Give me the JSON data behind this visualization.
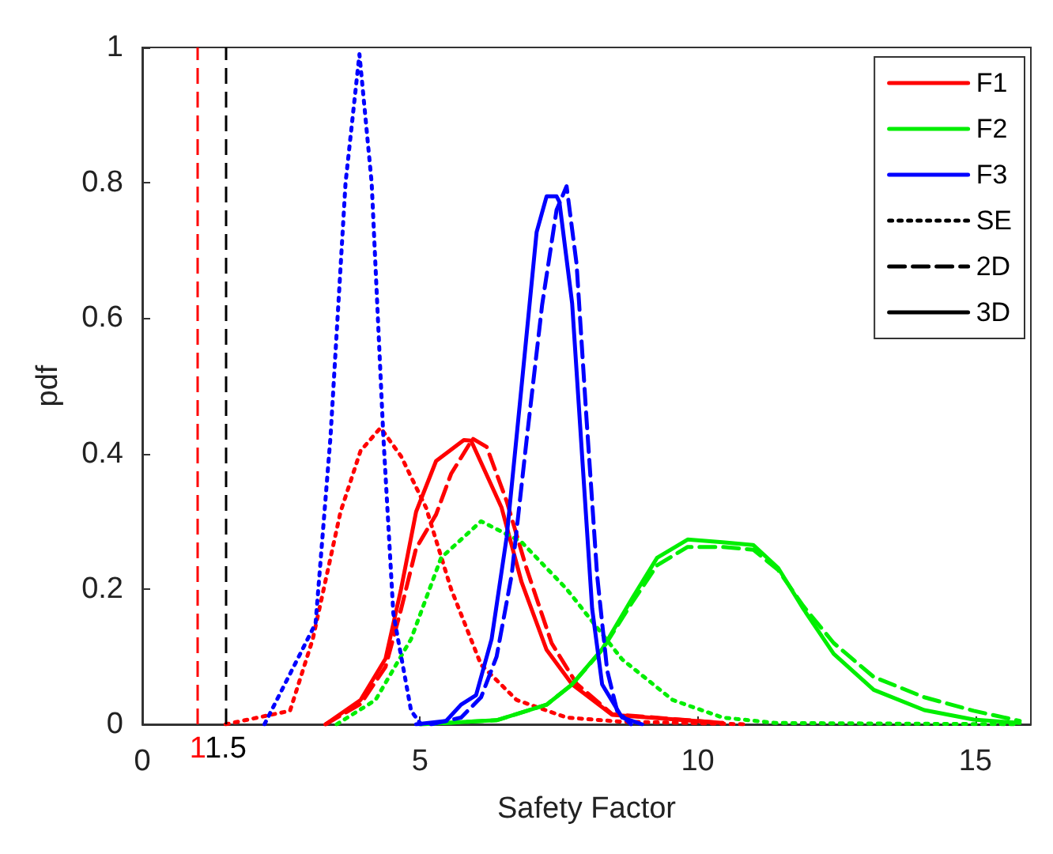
{
  "chart_data": {
    "type": "line",
    "xlabel": "Safety Factor",
    "ylabel": "pdf",
    "xlim": [
      0,
      16
    ],
    "xticks": [
      0,
      5,
      10,
      15
    ],
    "ylim": [
      0,
      1
    ],
    "yticks": [
      0,
      0.2,
      0.4,
      0.6,
      0.8,
      1
    ],
    "grid": false,
    "legend": "top right",
    "marker": "none",
    "series": [
      {
        "color": "#ff0000",
        "line_style": "dotted",
        "x": [
          1.5,
          2.66,
          3.07,
          3.57,
          3.93,
          4.29,
          4.66,
          5.11,
          5.56,
          6.1,
          6.74,
          7.64,
          8.6,
          10.9
        ],
        "values": [
          0,
          0.02,
          0.126,
          0.314,
          0.404,
          0.438,
          0.396,
          0.32,
          0.2,
          0.088,
          0.036,
          0.01,
          0.004,
          0
        ]
      },
      {
        "color": "#ff0000",
        "line_style": "dashed",
        "x": [
          3.3,
          3.93,
          4.38,
          4.66,
          4.93,
          5.29,
          5.56,
          5.95,
          6.2,
          6.56,
          6.92,
          7.37,
          7.82,
          8.46,
          10.45
        ],
        "values": [
          0,
          0.03,
          0.085,
          0.17,
          0.26,
          0.31,
          0.37,
          0.422,
          0.41,
          0.33,
          0.23,
          0.12,
          0.06,
          0.015,
          0.002
        ]
      },
      {
        "color": "#ff0000",
        "line_style": "solid",
        "x": [
          3.3,
          3.93,
          4.38,
          4.66,
          4.93,
          5.29,
          5.79,
          5.92,
          6.47,
          6.83,
          7.28,
          7.74,
          8.46,
          10.45
        ],
        "values": [
          0,
          0.036,
          0.097,
          0.2,
          0.314,
          0.389,
          0.42,
          0.419,
          0.32,
          0.21,
          0.11,
          0.059,
          0.014,
          0.002
        ]
      },
      {
        "color": "#00ee00",
        "line_style": "dotted",
        "x": [
          3.5,
          4.2,
          4.84,
          5.38,
          6.1,
          6.82,
          7.64,
          8.64,
          9.55,
          10.45,
          11.4,
          15.8
        ],
        "values": [
          0,
          0.036,
          0.126,
          0.246,
          0.3,
          0.27,
          0.2,
          0.096,
          0.036,
          0.01,
          0.002,
          0
        ]
      },
      {
        "color": "#00ee00",
        "line_style": "dashed",
        "x": [
          5,
          6.38,
          7.28,
          7.74,
          8.28,
          8.82,
          9.27,
          9.82,
          10.45,
          11.0,
          11.45,
          11.9,
          12.45,
          13.17,
          14.08,
          14.97,
          15.8
        ],
        "values": [
          0,
          0.006,
          0.029,
          0.059,
          0.11,
          0.18,
          0.235,
          0.262,
          0.262,
          0.258,
          0.228,
          0.175,
          0.12,
          0.07,
          0.04,
          0.02,
          0.005
        ]
      },
      {
        "color": "#00ee00",
        "line_style": "solid",
        "x": [
          5,
          6.38,
          7.28,
          7.74,
          8.28,
          8.82,
          9.27,
          9.82,
          10.45,
          11.0,
          11.45,
          11.9,
          12.45,
          13.17,
          14.08,
          14.97,
          15.8
        ],
        "values": [
          0,
          0.006,
          0.029,
          0.059,
          0.111,
          0.186,
          0.246,
          0.273,
          0.269,
          0.265,
          0.231,
          0.171,
          0.104,
          0.051,
          0.021,
          0.007,
          0.002
        ]
      },
      {
        "color": "#0000ff",
        "line_style": "dotted",
        "x": [
          2.2,
          3.12,
          3.39,
          3.66,
          3.91,
          4.13,
          4.34,
          4.52,
          4.84,
          5.02
        ],
        "values": [
          0,
          0.149,
          0.426,
          0.8,
          0.99,
          0.8,
          0.426,
          0.164,
          0.02,
          0
        ]
      },
      {
        "color": "#0000ff",
        "line_style": "dashed",
        "x": [
          5.2,
          5.74,
          6.1,
          6.38,
          6.65,
          6.92,
          7.2,
          7.46,
          7.64,
          7.82,
          8.0,
          8.19,
          8.37,
          8.55,
          8.8
        ],
        "values": [
          0,
          0.01,
          0.04,
          0.1,
          0.22,
          0.42,
          0.62,
          0.76,
          0.795,
          0.68,
          0.45,
          0.22,
          0.08,
          0.02,
          0
        ]
      },
      {
        "color": "#0000ff",
        "line_style": "solid",
        "x": [
          4.93,
          5.47,
          5.74,
          6.01,
          6.29,
          6.56,
          6.83,
          7.1,
          7.28,
          7.46,
          7.51,
          7.74,
          7.92,
          8.1,
          8.28,
          8.64,
          9.0
        ],
        "values": [
          0,
          0.005,
          0.029,
          0.043,
          0.126,
          0.276,
          0.5,
          0.727,
          0.78,
          0.78,
          0.772,
          0.622,
          0.396,
          0.171,
          0.059,
          0.01,
          0
        ]
      },
      {
        "name": "F1",
        "color": "#ff0000",
        "line_style": "solid"
      },
      {
        "name": "F2",
        "color": "#00ee00",
        "line_style": "solid"
      },
      {
        "name": "F3",
        "color": "#0000ff",
        "line_style": "solid"
      },
      {
        "name": "SE",
        "color": "#000000",
        "line_style": "dotted"
      },
      {
        "name": "2D",
        "color": "#000000",
        "line_style": "dashed"
      },
      {
        "name": "3D",
        "color": "#000000",
        "line_style": "solid"
      }
    ],
    "ref_lines": [
      {
        "axis": "x",
        "value": 1,
        "label": "1",
        "color": "#ff0000",
        "line_style": "dashed"
      },
      {
        "axis": "x",
        "value": 1.5,
        "label": "1.5",
        "color": "#000000",
        "line_style": "dashed"
      }
    ]
  }
}
